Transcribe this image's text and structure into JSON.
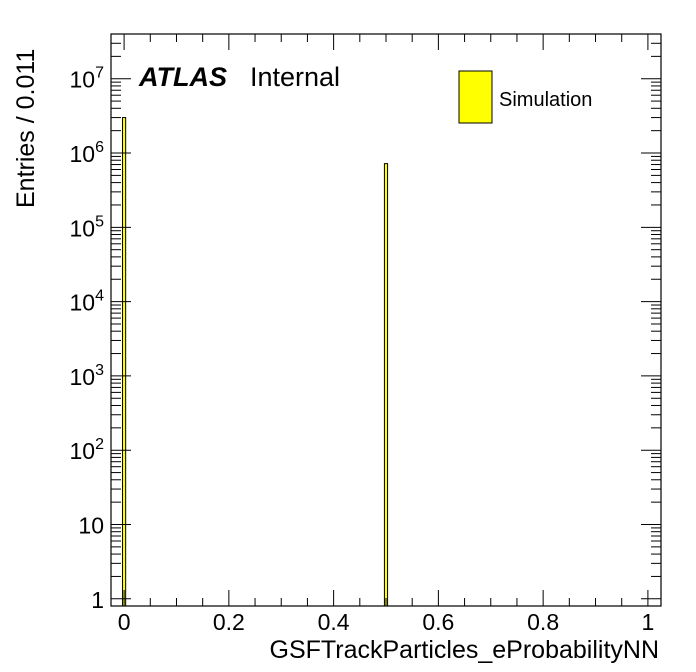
{
  "chart_data": {
    "type": "bar",
    "xlabel": "GSFTrackParticles_eProbabilityNN",
    "ylabel": "Entries / 0.011",
    "xlim": [
      -0.025,
      1.025
    ],
    "ylim": [
      0.8,
      40000000
    ],
    "yscale": "log",
    "bin_width": 0.011,
    "x_ticks": [
      {
        "value": 0,
        "label": "0"
      },
      {
        "value": 0.2,
        "label": "0.2"
      },
      {
        "value": 0.4,
        "label": "0.4"
      },
      {
        "value": 0.6,
        "label": "0.6"
      },
      {
        "value": 0.8,
        "label": "0.8"
      },
      {
        "value": 1,
        "label": "1"
      }
    ],
    "y_ticks": [
      {
        "value": 1,
        "base": "1",
        "exp": ""
      },
      {
        "value": 10,
        "base": "10",
        "exp": ""
      },
      {
        "value": 100,
        "base": "10",
        "exp": "2"
      },
      {
        "value": 1000,
        "base": "10",
        "exp": "3"
      },
      {
        "value": 10000,
        "base": "10",
        "exp": "4"
      },
      {
        "value": 100000,
        "base": "10",
        "exp": "5"
      },
      {
        "value": 1000000,
        "base": "10",
        "exp": "6"
      },
      {
        "value": 10000000,
        "base": "10",
        "exp": "7"
      }
    ],
    "bars": [
      {
        "x_low": -0.003,
        "x_high": 0.003,
        "value": 3000000
      },
      {
        "x_low": 0.497,
        "x_high": 0.503,
        "value": 720000
      }
    ],
    "series": [
      {
        "name": "Simulation",
        "color": "#ffff00",
        "edge_color": "#000000"
      }
    ],
    "legend_position": "top-right",
    "grid": false
  },
  "labels": {
    "atlas": "ATLAS",
    "internal": "Internal"
  }
}
